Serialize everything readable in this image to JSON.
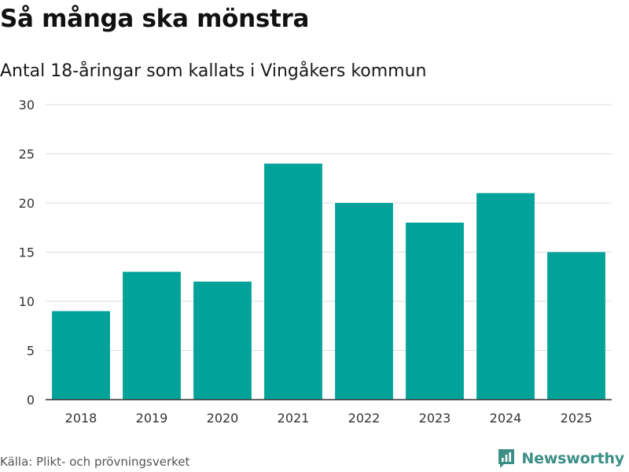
{
  "title": "Så många ska mönstra",
  "subtitle": "Antal 18-åringar som kallats i Vingåkers kommun",
  "source": "Källa: Plikt- och prövningsverket",
  "brand": "Newsworthy",
  "colors": {
    "bar": "#00a29a",
    "grid": "#dcdcdc",
    "axis": "#333333",
    "brand": "#3c8f86"
  },
  "chart_data": {
    "type": "bar",
    "title": "Så många ska mönstra",
    "subtitle": "Antal 18-åringar som kallats i Vingåkers kommun",
    "xlabel": "",
    "ylabel": "",
    "categories": [
      "2018",
      "2019",
      "2020",
      "2021",
      "2022",
      "2023",
      "2024",
      "2025"
    ],
    "values": [
      9,
      13,
      12,
      24,
      20,
      18,
      21,
      15
    ],
    "ylim": [
      0,
      30
    ],
    "yticks": [
      "0",
      "5",
      "10",
      "15",
      "20",
      "25",
      "30"
    ],
    "grid": true,
    "legend": "none"
  }
}
